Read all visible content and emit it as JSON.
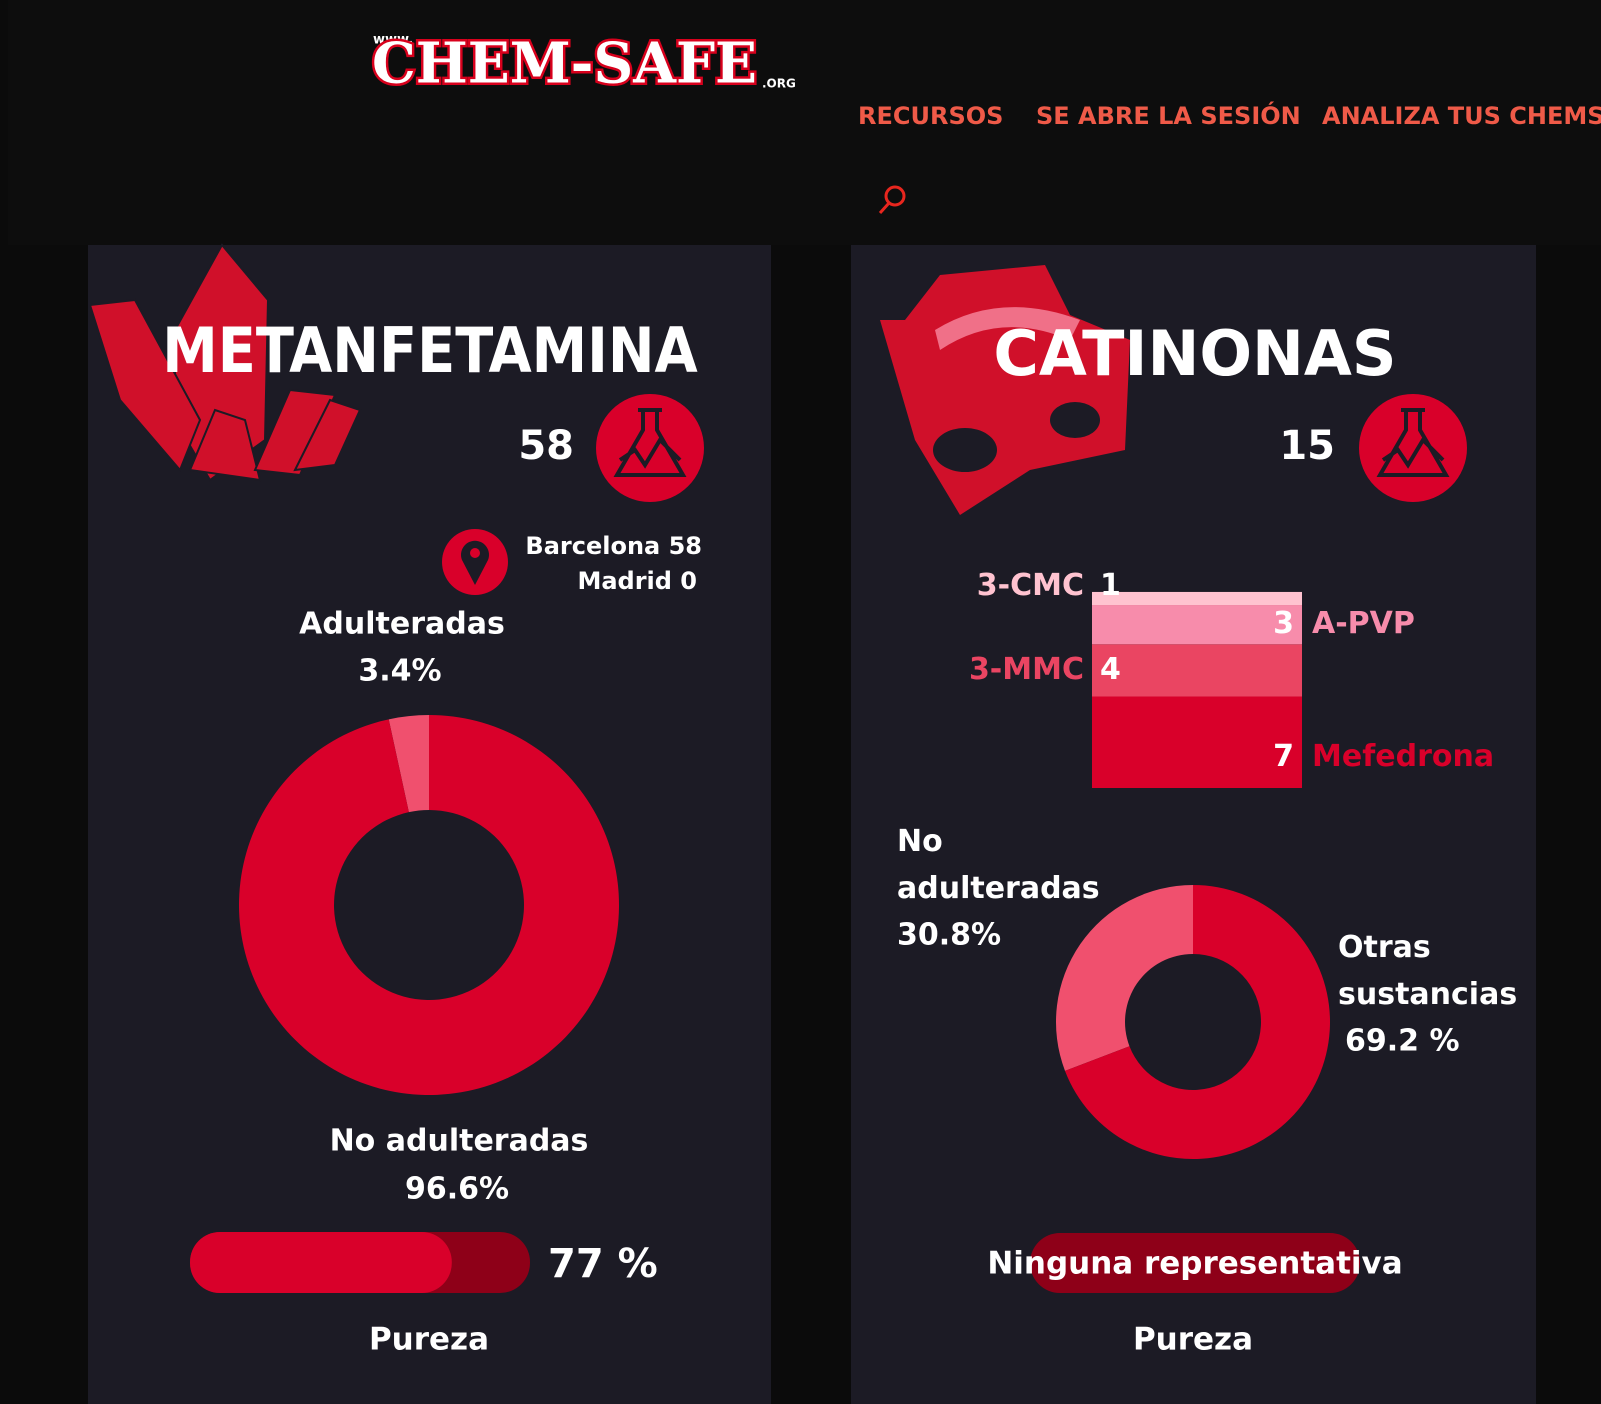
{
  "header": {
    "logo": {
      "prefix": "www.",
      "name": "CHEM-SAFE",
      "suffix": ".ORG"
    },
    "nav": [
      "RECURSOS",
      "SE ABRE LA SESIÓN",
      "ANALIZA TUS CHEMS"
    ]
  },
  "cards": [
    {
      "title": "METANFETAMINA",
      "samples": 58,
      "locations": [
        "Barcelona 58",
        "Madrid 0"
      ],
      "donut": [
        {
          "name": "Adulteradas",
          "value": 3.4,
          "label": "3.4%",
          "color": "#f0506e"
        },
        {
          "name": "No adulteradas",
          "value": 96.6,
          "label": "96.6%",
          "color": "#d9002a"
        }
      ],
      "purity": {
        "value": 77,
        "label": "77 %"
      },
      "purity_title": "Pureza"
    },
    {
      "title": "CATINONAS",
      "samples": 15,
      "substances": [
        {
          "name": "Mefedrona",
          "value": 7,
          "color": "#d9002a"
        },
        {
          "name": "3-MMC",
          "value": 4,
          "color": "#ea4562"
        },
        {
          "name": "A-PVP",
          "value": 3,
          "color": "#f78cab"
        },
        {
          "name": "3-CMC",
          "value": 1,
          "color": "#ffc3d0"
        }
      ],
      "donut": [
        {
          "name": "No adulteradas",
          "value": 30.8,
          "label": "30.8%",
          "color": "#f0506e"
        },
        {
          "name": "Otras sustancias",
          "value": 69.2,
          "label": "69.2 %",
          "color": "#d9002a"
        }
      ],
      "purity": {
        "label": "Ninguna representativa"
      },
      "purity_title": "Pureza"
    }
  ]
}
